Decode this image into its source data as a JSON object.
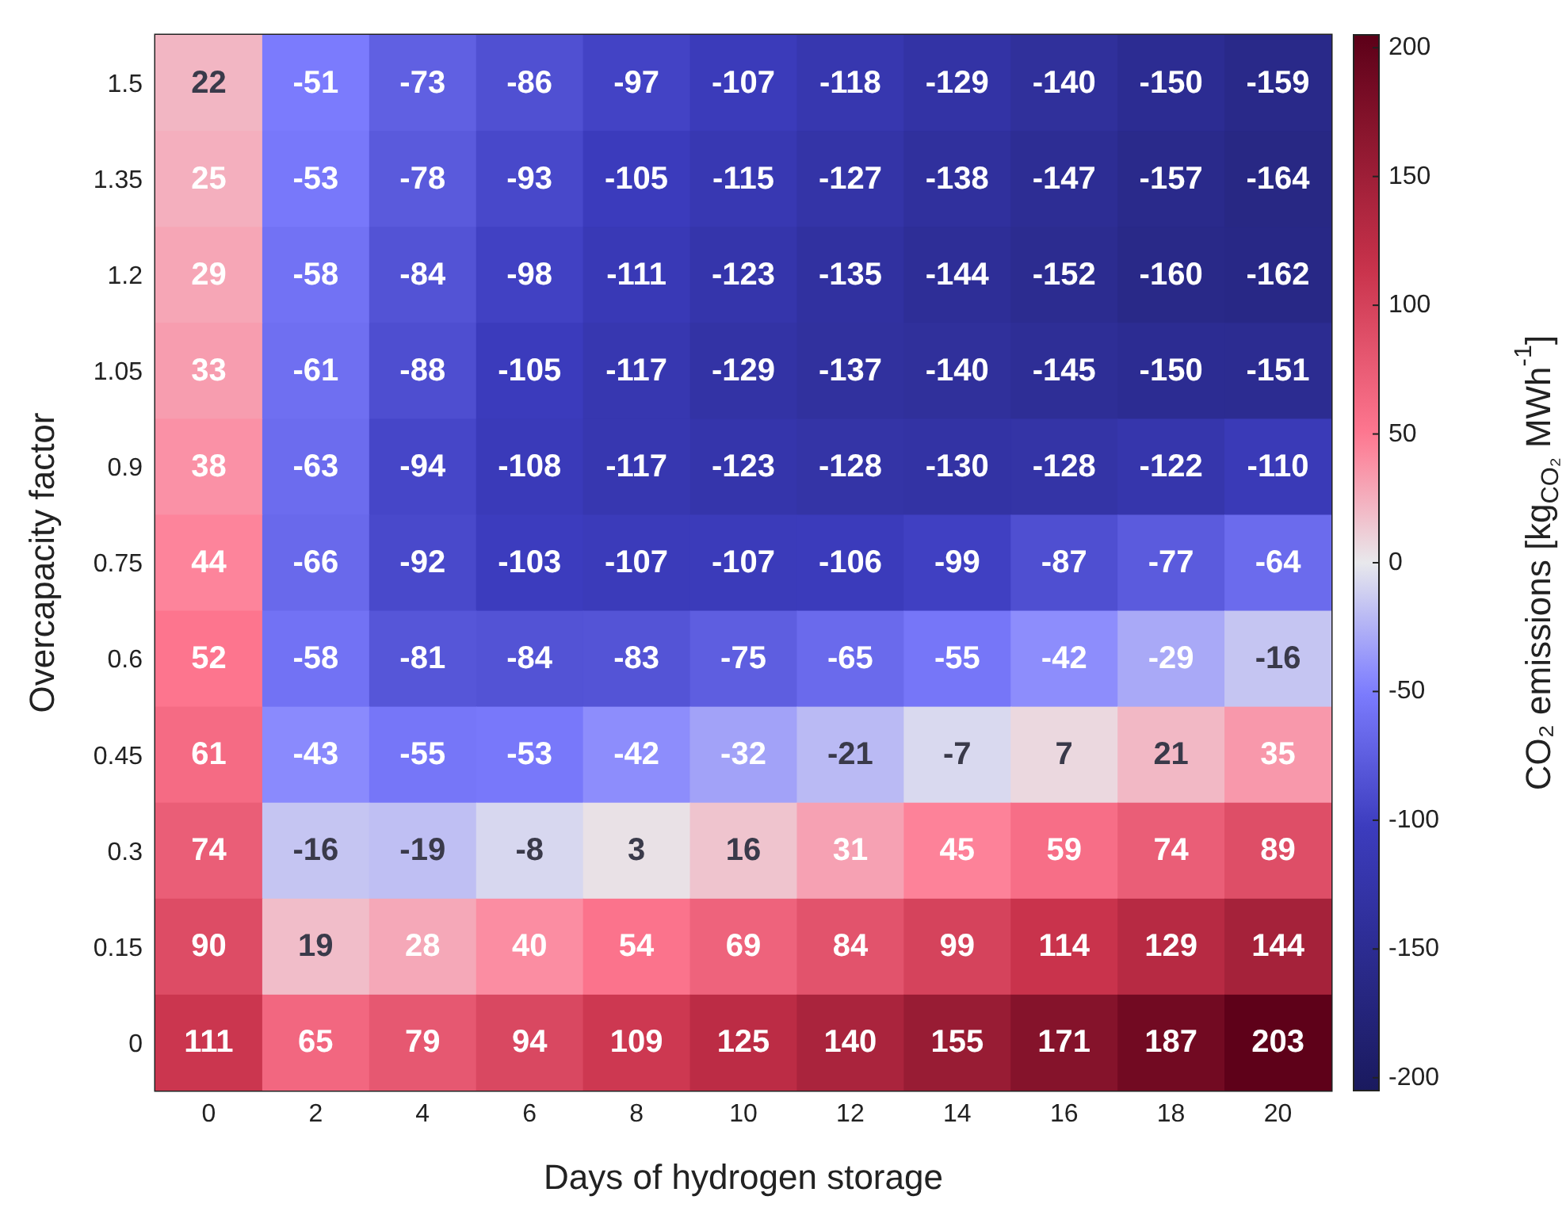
{
  "chart_data": {
    "type": "heatmap",
    "xlabel": "Days of hydrogen storage",
    "ylabel": "Overcapacity factor",
    "clabel": "CO₂ emissions [kg$_{CO₂}$ MWh$^{-1}$]",
    "categories": [
      "0",
      "2",
      "4",
      "6",
      "8",
      "10",
      "12",
      "14",
      "16",
      "18",
      "20"
    ],
    "y_categories": [
      "1.5",
      "1.35",
      "1.2",
      "1.05",
      "0.9",
      "0.75",
      "0.6",
      "0.45",
      "0.3",
      "0.15",
      "0"
    ],
    "cells": [
      [
        22,
        -51,
        -73,
        -86,
        -97,
        -107,
        -118,
        -129,
        -140,
        -150,
        -159
      ],
      [
        25,
        -53,
        -78,
        -93,
        -105,
        -115,
        -127,
        -138,
        -147,
        -157,
        -164
      ],
      [
        29,
        -58,
        -84,
        -98,
        -111,
        -123,
        -135,
        -144,
        -152,
        -160,
        -162
      ],
      [
        33,
        -61,
        -88,
        -105,
        -117,
        -129,
        -137,
        -140,
        -145,
        -150,
        -151
      ],
      [
        38,
        -63,
        -94,
        -108,
        -117,
        -123,
        -128,
        -130,
        -128,
        -122,
        -110
      ],
      [
        44,
        -66,
        -92,
        -103,
        -107,
        -107,
        -106,
        -99,
        -87,
        -77,
        -64
      ],
      [
        52,
        -58,
        -81,
        -84,
        -83,
        -75,
        -65,
        -55,
        -42,
        -29,
        -16
      ],
      [
        61,
        -43,
        -55,
        -53,
        -42,
        -32,
        -21,
        -7,
        7,
        21,
        35
      ],
      [
        74,
        -16,
        -19,
        -8,
        3,
        16,
        31,
        45,
        59,
        74,
        89
      ],
      [
        90,
        19,
        28,
        40,
        54,
        69,
        84,
        99,
        114,
        129,
        144
      ],
      [
        111,
        65,
        79,
        94,
        109,
        125,
        140,
        155,
        171,
        187,
        203
      ]
    ],
    "data_labels": true,
    "clim": [
      -205,
      205
    ],
    "cticks": [
      -200,
      -150,
      -100,
      -50,
      0,
      50,
      100,
      150,
      200
    ]
  }
}
